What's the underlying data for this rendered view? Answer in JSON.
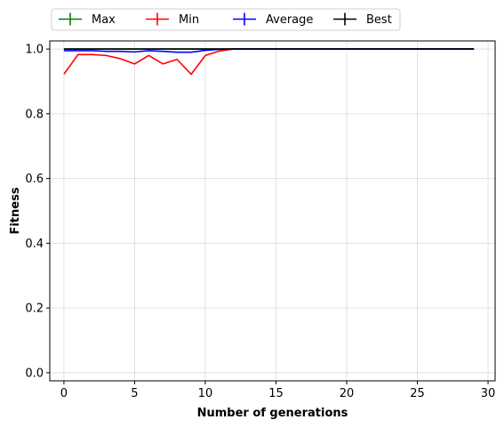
{
  "chart_data": {
    "type": "line",
    "xlabel": "Number of generations",
    "ylabel": "Fitness",
    "xlim": [
      -1,
      30.5
    ],
    "ylim": [
      -0.025,
      1.025
    ],
    "xticks": [
      0,
      5,
      10,
      15,
      20,
      25,
      30
    ],
    "yticks": [
      0.0,
      0.2,
      0.4,
      0.6,
      0.8,
      1.0
    ],
    "xtick_labels": [
      "0",
      "5",
      "10",
      "15",
      "20",
      "25",
      "30"
    ],
    "ytick_labels": [
      "0.0",
      "0.2",
      "0.4",
      "0.6",
      "0.8",
      "1.0"
    ],
    "grid": true,
    "legend_position": "top, above plot",
    "x": [
      0,
      1,
      2,
      3,
      4,
      5,
      6,
      7,
      8,
      9,
      10,
      11,
      12,
      13,
      14,
      15,
      16,
      17,
      18,
      19,
      20,
      21,
      22,
      23,
      24,
      25,
      26,
      27,
      28,
      29
    ],
    "series": [
      {
        "name": "Max",
        "color": "#008000",
        "values": [
          1,
          1,
          1,
          1,
          1,
          1,
          1,
          1,
          1,
          1,
          1,
          1,
          1,
          1,
          1,
          1,
          1,
          1,
          1,
          1,
          1,
          1,
          1,
          1,
          1,
          1,
          1,
          1,
          1,
          1
        ]
      },
      {
        "name": "Min",
        "color": "#ff0000",
        "values": [
          0.922,
          0.983,
          0.983,
          0.98,
          0.97,
          0.954,
          0.98,
          0.954,
          0.968,
          0.922,
          0.98,
          0.994,
          1,
          1,
          1,
          1,
          1,
          1,
          1,
          1,
          1,
          1,
          1,
          1,
          1,
          1,
          1,
          1,
          1,
          1
        ]
      },
      {
        "name": "Average",
        "color": "#0000ff",
        "values": [
          0.995,
          0.995,
          0.995,
          0.993,
          0.993,
          0.991,
          0.995,
          0.993,
          0.99,
          0.99,
          0.996,
          0.999,
          1,
          1,
          1,
          1,
          1,
          1,
          1,
          1,
          1,
          1,
          1,
          1,
          1,
          1,
          1,
          1,
          1,
          1
        ]
      },
      {
        "name": "Best",
        "color": "#000000",
        "values": [
          1,
          1,
          1,
          1,
          1,
          1,
          1,
          1,
          1,
          1,
          1,
          1,
          1,
          1,
          1,
          1,
          1,
          1,
          1,
          1,
          1,
          1,
          1,
          1,
          1,
          1,
          1,
          1,
          1,
          1
        ]
      }
    ]
  }
}
